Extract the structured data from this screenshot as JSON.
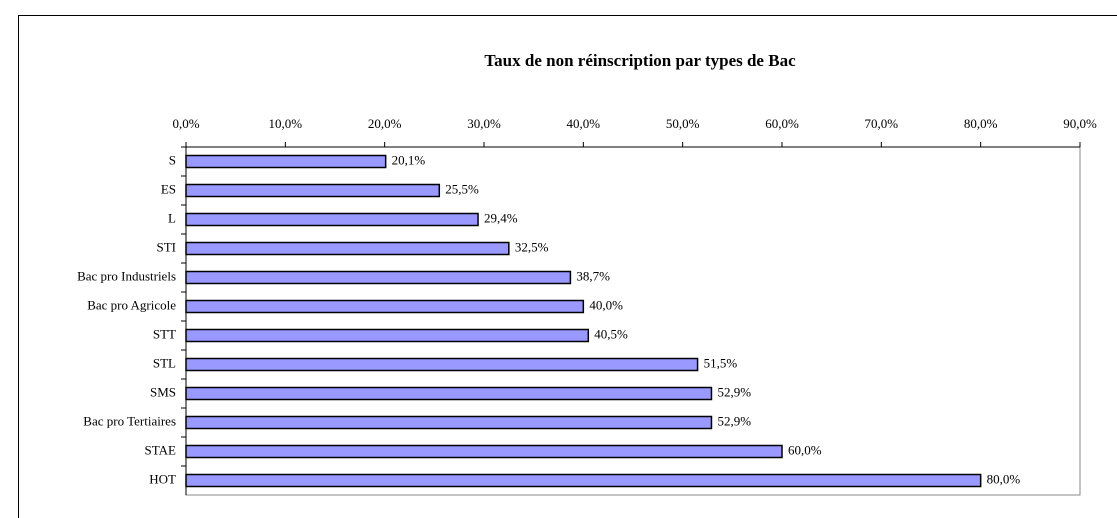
{
  "chart_data": {
    "type": "bar",
    "orientation": "horizontal",
    "title": "Taux de non réinscription par types de Bac",
    "categories": [
      "S",
      "ES",
      "L",
      "STI",
      "Bac pro Industriels",
      "Bac pro Agricole",
      "STT",
      "STL",
      "SMS",
      "Bac pro Tertiaires",
      "STAE",
      "HOT"
    ],
    "values": [
      20.1,
      25.5,
      29.4,
      32.5,
      38.7,
      40.0,
      40.5,
      51.5,
      52.9,
      52.9,
      60.0,
      80.0
    ],
    "value_labels": [
      "20,1%",
      "25,5%",
      "29,4%",
      "32,5%",
      "38,7%",
      "40,0%",
      "40,5%",
      "51,5%",
      "52,9%",
      "52,9%",
      "60,0%",
      "80,0%"
    ],
    "color": "#9999ff",
    "xlim": [
      0,
      90
    ],
    "xticks": [
      {
        "value": 0,
        "label": "0,0%"
      },
      {
        "value": 10,
        "label": "10,0%"
      },
      {
        "value": 20,
        "label": "20,0%"
      },
      {
        "value": 30,
        "label": "30,0%"
      },
      {
        "value": 40,
        "label": "40,0%"
      },
      {
        "value": 50,
        "label": "50,0%"
      },
      {
        "value": 60,
        "label": "60,0%"
      },
      {
        "value": 70,
        "label": "70,0%"
      },
      {
        "value": 80,
        "label": "80,0%"
      },
      {
        "value": 90,
        "label": "90,0%"
      }
    ]
  }
}
